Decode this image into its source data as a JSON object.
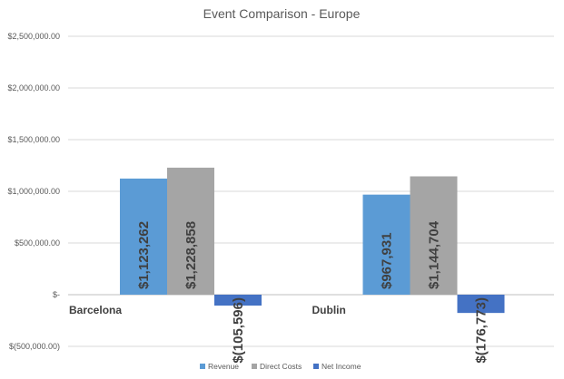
{
  "chart_data": {
    "type": "bar",
    "title": "Event Comparison - Europe",
    "xlabel": "",
    "ylabel": "",
    "categories": [
      "Barcelona",
      "Dublin"
    ],
    "series": [
      {
        "name": "Revenue",
        "color": "#5b9bd5",
        "values": [
          1123262,
          967931
        ],
        "labels": [
          "$1,123,262",
          "$967,931"
        ]
      },
      {
        "name": "Direct Costs",
        "color": "#a5a5a5",
        "values": [
          1228858,
          1144704
        ],
        "labels": [
          "$1,228,858",
          "$1,144,704"
        ]
      },
      {
        "name": "Net Income",
        "color": "#4472c4",
        "values": [
          -105596,
          -176773
        ],
        "labels": [
          "$(105,596)",
          "$(176,773)"
        ]
      }
    ],
    "ylim": [
      -500000,
      2500000
    ],
    "yticks": [
      2500000,
      2000000,
      1500000,
      1000000,
      500000,
      0,
      -500000
    ],
    "ytick_labels": [
      "$2,500,000.00",
      "$2,000,000.00",
      "$1,500,000.00",
      "$1,000,000.00",
      "$500,000.00",
      "$-",
      "$(500,000.00)"
    ],
    "grid": true,
    "legend": "bottom"
  }
}
